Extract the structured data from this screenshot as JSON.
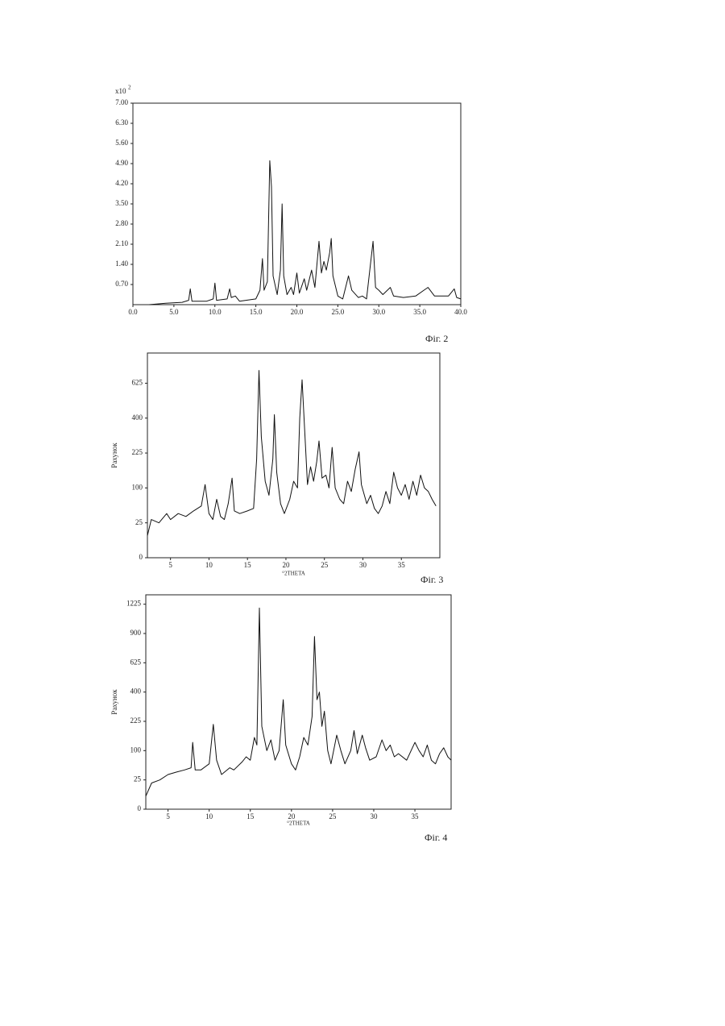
{
  "chart_data": [
    {
      "type": "line",
      "caption": "Фіг. 2",
      "y_multiplier": {
        "base": "x10",
        "exponent": "2"
      },
      "color": "#111111",
      "xlim": [
        0,
        40
      ],
      "ylim": [
        0,
        7
      ],
      "xticks": [
        {
          "value": 0,
          "label": "0.0"
        },
        {
          "value": 5,
          "label": "5.0"
        },
        {
          "value": 10,
          "label": "10.0"
        },
        {
          "value": 15,
          "label": "15.0"
        },
        {
          "value": 20,
          "label": "20.0"
        },
        {
          "value": 25,
          "label": "25.0"
        },
        {
          "value": 30,
          "label": "30.0"
        },
        {
          "value": 35,
          "label": "35.0"
        },
        {
          "value": 40,
          "label": "40.0"
        }
      ],
      "yticks": [
        {
          "value": 0.7,
          "label": "0.70"
        },
        {
          "value": 1.4,
          "label": "1.40"
        },
        {
          "value": 2.1,
          "label": "2.10"
        },
        {
          "value": 2.8,
          "label": "2.80"
        },
        {
          "value": 3.5,
          "label": "3.50"
        },
        {
          "value": 4.2,
          "label": "4.20"
        },
        {
          "value": 4.9,
          "label": "4.90"
        },
        {
          "value": 5.6,
          "label": "5.60"
        },
        {
          "value": 6.3,
          "label": "6.30"
        },
        {
          "value": 7,
          "label": "7.00"
        }
      ],
      "x": [
        2,
        4,
        6,
        6.8,
        7,
        7.2,
        9,
        9.8,
        10,
        10.2,
        11.5,
        11.8,
        12,
        12.5,
        13,
        15,
        15.5,
        15.8,
        16,
        16.4,
        16.7,
        16.9,
        17.1,
        17.6,
        18,
        18.2,
        18.4,
        18.8,
        19.3,
        19.6,
        20,
        20.3,
        20.9,
        21.2,
        21.8,
        22.2,
        22.7,
        23,
        23.3,
        23.6,
        24,
        24.2,
        24.4,
        25,
        25.6,
        26.3,
        26.7,
        27.5,
        28,
        28.5,
        29.3,
        29.6,
        30,
        30.5,
        31.4,
        31.8,
        33,
        34.5,
        35.5,
        36,
        36.8,
        38.5,
        39.2,
        39.5,
        40
      ],
      "values": [
        0,
        0.05,
        0.08,
        0.15,
        0.55,
        0.12,
        0.12,
        0.2,
        0.75,
        0.15,
        0.2,
        0.55,
        0.25,
        0.3,
        0.12,
        0.2,
        0.5,
        1.6,
        0.5,
        0.8,
        5,
        4.1,
        1,
        0.35,
        1.2,
        3.5,
        1,
        0.35,
        0.6,
        0.35,
        1.1,
        0.4,
        0.9,
        0.5,
        1.2,
        0.6,
        2.2,
        1.1,
        1.5,
        1.2,
        1.8,
        2.3,
        1,
        0.3,
        0.2,
        1,
        0.5,
        0.25,
        0.3,
        0.2,
        2.2,
        0.6,
        0.5,
        0.35,
        0.6,
        0.3,
        0.25,
        0.3,
        0.5,
        0.6,
        0.3,
        0.3,
        0.55,
        0.25,
        0.2
      ]
    },
    {
      "type": "line",
      "caption": "Фіг. 3",
      "x_label": "°2THETA",
      "y_label": "Рахунок",
      "yscale": "sqrt",
      "color": "#111111",
      "xlim": [
        2,
        40
      ],
      "ylim": [
        0,
        860
      ],
      "xticks": [
        5,
        10,
        15,
        20,
        25,
        30,
        35
      ],
      "yticks": [
        0,
        25,
        100,
        225,
        400,
        625
      ],
      "x": [
        2,
        2.5,
        3.5,
        4.5,
        5,
        6,
        7,
        8,
        9,
        9.5,
        10,
        10.5,
        11,
        11.5,
        12,
        12.5,
        13,
        13.3,
        14,
        15,
        15.8,
        16.2,
        16.5,
        16.8,
        17.3,
        17.8,
        18.3,
        18.5,
        18.8,
        19.3,
        19.8,
        20.5,
        21,
        21.5,
        21.8,
        22.1,
        22.4,
        22.8,
        23.2,
        23.6,
        24,
        24.3,
        24.7,
        25.2,
        25.6,
        26,
        26.4,
        27,
        27.5,
        28,
        28.5,
        29,
        29.5,
        29.8,
        30.5,
        31,
        31.5,
        32,
        32.5,
        33,
        33.5,
        34,
        34.5,
        35,
        35.5,
        36,
        36.5,
        37,
        37.5,
        38,
        38.5,
        39,
        39.5
      ],
      "values": [
        10,
        30,
        25,
        40,
        30,
        40,
        35,
        45,
        55,
        110,
        40,
        30,
        70,
        35,
        30,
        60,
        130,
        45,
        40,
        45,
        50,
        200,
        720,
        300,
        120,
        80,
        200,
        420,
        150,
        60,
        40,
        70,
        120,
        100,
        400,
        650,
        360,
        110,
        170,
        120,
        190,
        280,
        130,
        140,
        100,
        250,
        100,
        70,
        60,
        120,
        90,
        160,
        230,
        110,
        60,
        80,
        50,
        40,
        55,
        90,
        60,
        150,
        100,
        80,
        110,
        70,
        120,
        80,
        140,
        100,
        90,
        70,
        55
      ]
    },
    {
      "type": "line",
      "caption": "Фіг. 4",
      "x_label": "°2THETA",
      "y_label": "Рахунок",
      "yscale": "sqrt",
      "color": "#111111",
      "xlim": [
        2.3,
        39.4
      ],
      "ylim": [
        0,
        1340
      ],
      "xticks": [
        5,
        10,
        15,
        20,
        25,
        30,
        35
      ],
      "yticks": [
        0,
        25,
        100,
        225,
        400,
        625,
        900,
        1225
      ],
      "x": [
        2.3,
        3,
        4,
        5,
        6,
        7,
        7.8,
        8,
        8.3,
        9,
        10,
        10.5,
        10.9,
        11.5,
        12.5,
        13,
        14,
        14.5,
        15,
        15.5,
        15.8,
        16.1,
        16.4,
        17,
        17.5,
        18,
        18.5,
        19,
        19.3,
        20,
        20.5,
        21,
        21.5,
        22,
        22.5,
        22.8,
        23.1,
        23.4,
        23.7,
        24,
        24.4,
        24.8,
        25.5,
        26,
        26.5,
        27.2,
        27.6,
        28,
        28.6,
        29,
        29.5,
        30.3,
        31,
        31.5,
        32,
        32.5,
        33,
        34,
        35,
        35.5,
        36,
        36.5,
        37,
        37.5,
        38,
        38.5,
        39,
        39.4
      ],
      "values": [
        5,
        20,
        25,
        35,
        40,
        45,
        50,
        130,
        45,
        45,
        60,
        210,
        70,
        35,
        50,
        45,
        65,
        80,
        70,
        150,
        120,
        1180,
        200,
        100,
        140,
        70,
        100,
        350,
        120,
        60,
        45,
        80,
        150,
        120,
        250,
        870,
        350,
        400,
        200,
        280,
        100,
        60,
        160,
        100,
        60,
        100,
        180,
        90,
        160,
        110,
        70,
        80,
        140,
        100,
        120,
        80,
        90,
        70,
        130,
        100,
        80,
        120,
        70,
        60,
        90,
        110,
        80,
        70
      ]
    }
  ]
}
